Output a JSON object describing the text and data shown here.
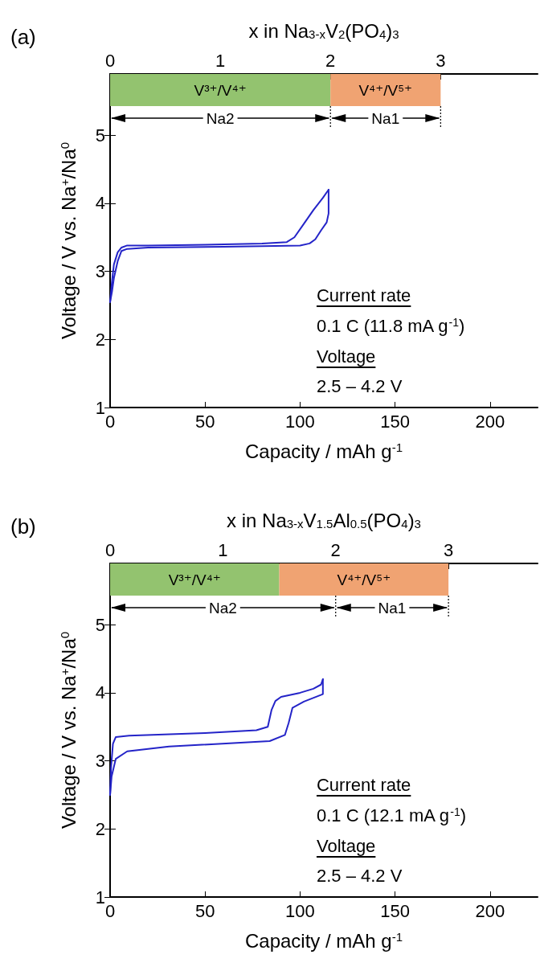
{
  "chart_data": [
    {
      "type": "line",
      "title": "(a)",
      "xlabel": "Capacity / mAh g$^{-1}$",
      "x2label": "x in Na$_{3-x}$V$_{2}$(PO$_{4}$)$_{3}$",
      "ylabel": "Voltage / V vs. Na$^{+}$/Na$^{0}$",
      "xlim": [
        0,
        225
      ],
      "xticks": [
        0,
        50,
        100,
        150,
        200
      ],
      "x2lim": [
        0,
        3.88
      ],
      "x2ticks": [
        0,
        1,
        2,
        3
      ],
      "ylim": [
        1,
        5.9
      ],
      "yticks": [
        1,
        2,
        3,
        4,
        5
      ],
      "marker": "none",
      "line_style": "solid",
      "series": [
        {
          "color": "#2424c8",
          "x": [
            0,
            1,
            2,
            4,
            6,
            9,
            20,
            50,
            80,
            93,
            97,
            102,
            107,
            112,
            115
          ],
          "values": [
            2.55,
            2.85,
            3.1,
            3.28,
            3.35,
            3.38,
            3.38,
            3.39,
            3.41,
            3.43,
            3.5,
            3.7,
            3.9,
            4.08,
            4.2
          ]
        },
        {
          "color": "#2424c8",
          "x": [
            115,
            115,
            114,
            111,
            108,
            105,
            100,
            60,
            20,
            9,
            6,
            4,
            2,
            1,
            0
          ],
          "values": [
            4.2,
            3.85,
            3.72,
            3.6,
            3.47,
            3.41,
            3.38,
            3.36,
            3.35,
            3.33,
            3.3,
            3.15,
            2.9,
            2.7,
            2.55
          ]
        }
      ],
      "bands": [
        {
          "axis": "x2",
          "from": 0,
          "to": 2,
          "label": "V³⁺/V⁴⁺",
          "color": "#93c36f"
        },
        {
          "axis": "x2",
          "from": 2,
          "to": 3,
          "label": "V⁴⁺/V⁵⁺",
          "color": "#f0a372"
        }
      ],
      "annotations": [
        "Na2",
        "Na1",
        "Current rate",
        "0.1 C (11.8 mA g$^{-1}$)",
        "Voltage",
        "2.5 – 4.2 V"
      ]
    },
    {
      "type": "line",
      "title": "(b)",
      "xlabel": "Capacity / mAh g$^{-1}$",
      "x2label": "x in Na$_{3-x}$V$_{1.5}$Al$_{0.5}$(PO$_{4}$)$_{3}$",
      "ylabel": "Voltage / V vs. Na$^{+}$/Na$^{0}$",
      "xlim": [
        0,
        225
      ],
      "xticks": [
        0,
        50,
        100,
        150,
        200
      ],
      "x2lim": [
        0,
        3.79
      ],
      "x2ticks": [
        0,
        1,
        2,
        3
      ],
      "ylim": [
        1,
        5.9
      ],
      "yticks": [
        1,
        2,
        3,
        4,
        5
      ],
      "marker": "none",
      "line_style": "solid",
      "series": [
        {
          "color": "#2424c8",
          "x": [
            0,
            0.5,
            1.5,
            3,
            10,
            50,
            77,
            83,
            85,
            87,
            90,
            100,
            107,
            111,
            112
          ],
          "values": [
            2.5,
            2.9,
            3.25,
            3.35,
            3.37,
            3.41,
            3.45,
            3.5,
            3.75,
            3.88,
            3.94,
            4.0,
            4.06,
            4.12,
            4.2
          ]
        },
        {
          "color": "#2424c8",
          "x": [
            112,
            112,
            102,
            96,
            94,
            92,
            84,
            31,
            9,
            3,
            0.8,
            0
          ],
          "values": [
            4.2,
            3.98,
            3.87,
            3.78,
            3.56,
            3.38,
            3.29,
            3.21,
            3.14,
            3.03,
            2.77,
            2.5
          ]
        }
      ],
      "bands": [
        {
          "axis": "x2",
          "from": 0,
          "to": 1.5,
          "label": "V³⁺/V⁴⁺",
          "color": "#93c36f"
        },
        {
          "axis": "x2",
          "from": 1.5,
          "to": 3,
          "label": "V⁴⁺/V⁵⁺",
          "color": "#f0a372"
        }
      ],
      "annotations": [
        "Na2",
        "Na1",
        "Current rate",
        "0.1 C (12.1 mA g$^{-1}$)",
        "Voltage",
        "2.5 – 4.2 V"
      ]
    }
  ]
}
